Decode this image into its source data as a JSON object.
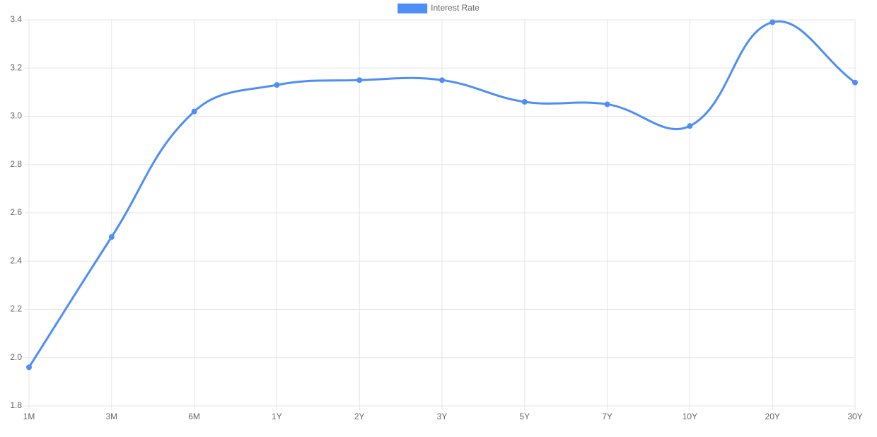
{
  "chart_data": {
    "type": "line",
    "categories": [
      "1M",
      "3M",
      "6M",
      "1Y",
      "2Y",
      "3Y",
      "5Y",
      "7Y",
      "10Y",
      "20Y",
      "30Y"
    ],
    "series": [
      {
        "name": "Interest Rate",
        "color": "#4e8ef7",
        "values": [
          1.96,
          2.5,
          3.02,
          3.13,
          3.15,
          3.15,
          3.06,
          3.05,
          2.96,
          3.39,
          3.14
        ]
      }
    ],
    "ylim": [
      1.8,
      3.4
    ],
    "yticks": [
      1.8,
      {
        "value": 2.0,
        "label": "2.0"
      },
      2.2,
      2.4,
      2.6,
      2.8,
      {
        "value": 3.0,
        "label": "3.0"
      },
      3.2,
      3.4
    ],
    "grid": true,
    "legend": "top"
  }
}
